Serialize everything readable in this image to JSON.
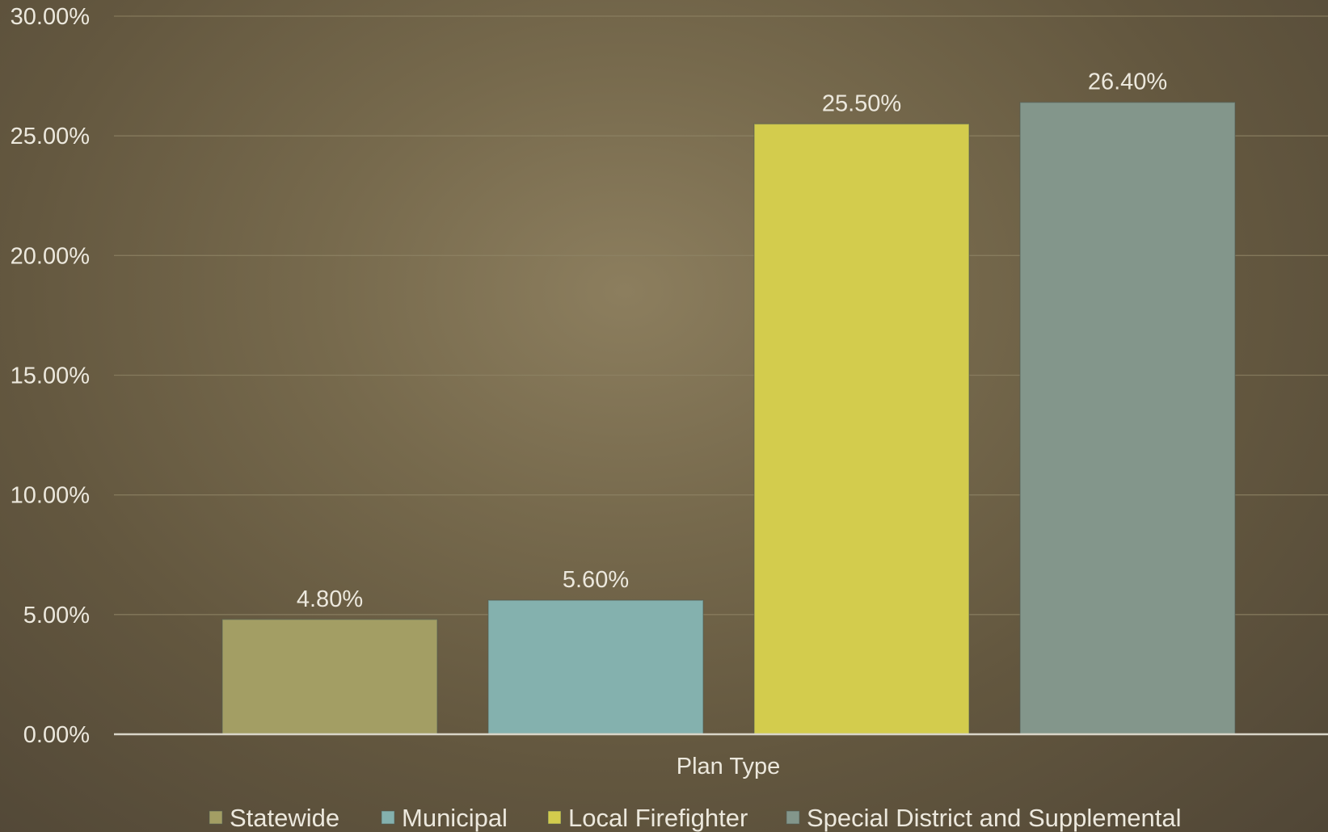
{
  "chart_data": {
    "type": "bar",
    "xlabel": "Plan Type",
    "ylabel": "",
    "ylim": [
      0,
      30
    ],
    "y_ticks": [
      "0.00%",
      "5.00%",
      "10.00%",
      "15.00%",
      "20.00%",
      "25.00%",
      "30.00%"
    ],
    "grid": true,
    "legend_position": "bottom",
    "series": [
      {
        "name": "Statewide",
        "value": 4.8,
        "label": "4.80%",
        "color": "#a39e64"
      },
      {
        "name": "Municipal",
        "value": 5.6,
        "label": "5.60%",
        "color": "#84b1ae"
      },
      {
        "name": "Local Firefighter",
        "value": 25.5,
        "label": "25.50%",
        "color": "#d3cc4d"
      },
      {
        "name": "Special District and Supplemental",
        "value": 26.4,
        "label": "26.40%",
        "color": "#83968b"
      }
    ]
  }
}
